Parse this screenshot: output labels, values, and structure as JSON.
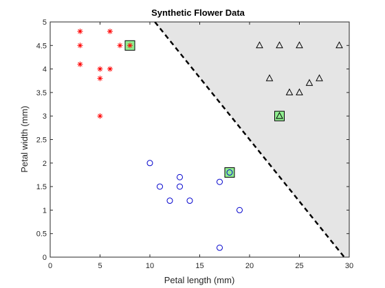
{
  "chart_data": {
    "type": "scatter",
    "title": "Synthetic Flower Data",
    "xlabel": "Petal length (mm)",
    "ylabel": "Petal width (mm)",
    "xlim": [
      0,
      30
    ],
    "ylim": [
      0,
      5
    ],
    "xticks": [
      0,
      5,
      10,
      15,
      20,
      25,
      30
    ],
    "yticks": [
      0,
      0.5,
      1,
      1.5,
      2,
      2.5,
      3,
      3.5,
      4,
      4.5,
      5
    ],
    "grid": false,
    "series": [
      {
        "marker": "asterisk",
        "color": "#ff0000",
        "x": [
          3,
          3,
          3,
          5,
          5,
          5,
          6,
          6,
          7,
          8
        ],
        "y": [
          4.8,
          4.5,
          4.1,
          4.0,
          3.8,
          3.0,
          4.8,
          4.0,
          4.5,
          4.5
        ]
      },
      {
        "marker": "circle",
        "color": "#0000cc",
        "x": [
          10,
          11,
          12,
          13,
          13,
          14,
          17,
          17,
          18,
          19
        ],
        "y": [
          2.0,
          1.5,
          1.2,
          1.7,
          1.5,
          1.2,
          1.6,
          0.2,
          1.8,
          1.0
        ]
      },
      {
        "marker": "triangle",
        "color": "#000000",
        "x": [
          21,
          22,
          23,
          23,
          24,
          25,
          25,
          26,
          27,
          29
        ],
        "y": [
          4.5,
          3.8,
          4.5,
          3.0,
          3.5,
          4.5,
          3.5,
          3.7,
          3.8,
          4.5
        ]
      }
    ],
    "highlighted": [
      {
        "marker": "asterisk",
        "color": "#ff0000",
        "x": 8,
        "y": 4.5
      },
      {
        "marker": "circle",
        "color": "#0000cc",
        "x": 18,
        "y": 1.8
      },
      {
        "marker": "triangle",
        "color": "#000000",
        "x": 23,
        "y": 3.0
      }
    ],
    "highlight_fill": "#90ee90",
    "decision_boundary": {
      "style": "dashed",
      "color": "#000000",
      "points": [
        [
          10.5,
          5
        ],
        [
          29.5,
          0
        ]
      ]
    },
    "shaded_region": {
      "color": "#e5e5e5",
      "side": "upper-right of boundary"
    }
  }
}
